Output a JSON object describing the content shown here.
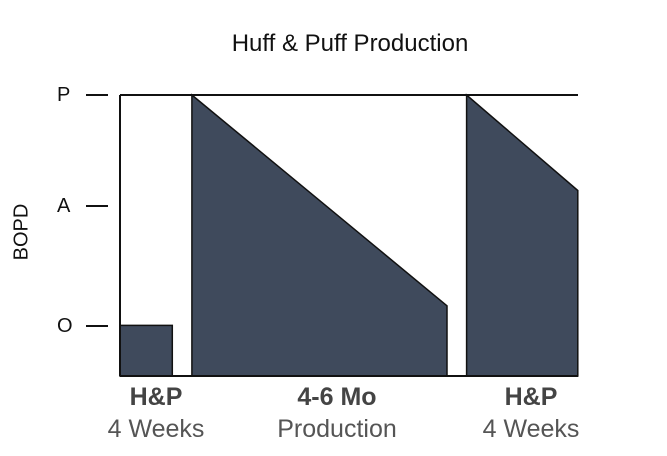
{
  "chart_data": {
    "type": "area",
    "title": "Huff & Puff Production",
    "ylabel": "BOPD",
    "y_ticks": [
      "P",
      "A",
      "O"
    ],
    "segments": [
      {
        "start": 0.0,
        "end": 0.16,
        "y_start": 0.18,
        "y_end": 0.18
      },
      {
        "start": 0.22,
        "end": 1.0,
        "y_start": 1.0,
        "y_end": 0.25
      },
      {
        "start": 1.06,
        "end": 1.4,
        "y_start": 1.0,
        "y_end": 0.66
      }
    ],
    "fill_color": "#3f4a5c",
    "phases": [
      {
        "bold": "H&P",
        "sub": "4 Weeks"
      },
      {
        "bold": "4-6 Mo",
        "sub": "Production"
      },
      {
        "bold": "H&P",
        "sub": "4 Weeks"
      }
    ]
  }
}
